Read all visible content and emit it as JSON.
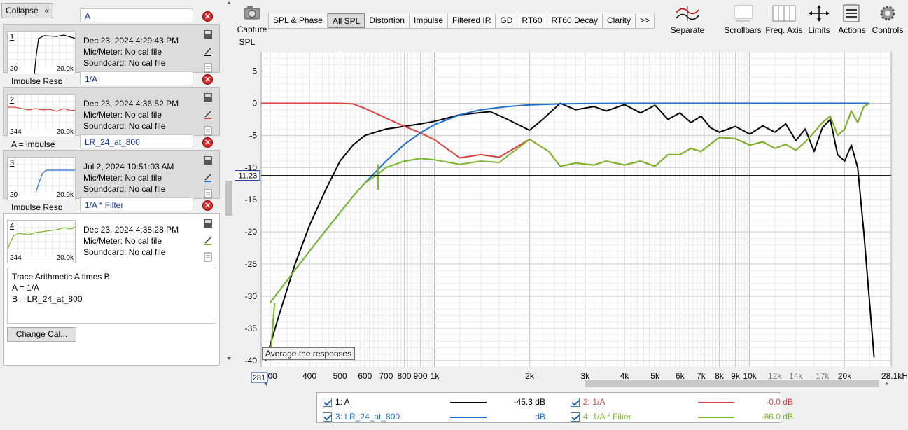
{
  "left_panel": {
    "collapse_label": "Collapse",
    "traces": [
      {
        "num": "1",
        "name": "A",
        "date": "Dec 23, 2024 4:29:43 PM",
        "mic": "Mic/Meter: No cal file",
        "soundcard": "Soundcard: No cal file",
        "thumb_lo": "20",
        "thumb_hi": "20.0k",
        "under": "Impulse Resp",
        "color": "#000000"
      },
      {
        "num": "2",
        "name": "1/A",
        "date": "Dec 23, 2024 4:36:52 PM",
        "mic": "Mic/Meter: No cal file",
        "soundcard": "Soundcard: No cal file",
        "thumb_lo": "244",
        "thumb_hi": "20.0k",
        "under": "A = impulse",
        "color": "#e04040"
      },
      {
        "num": "3",
        "name": "LR_24_at_800",
        "date": "Jul 2, 2024 10:51:03 AM",
        "mic": "Mic/Meter: No cal file",
        "soundcard": "Soundcard: No cal file",
        "thumb_lo": "20",
        "thumb_hi": "20.0k",
        "under": "Impulse Resp",
        "color": "#1e6fd0"
      },
      {
        "num": "4",
        "name": "1/A * Filter",
        "date": "Dec 23, 2024 4:38:28 PM",
        "mic": "Mic/Meter: No cal file",
        "soundcard": "Soundcard: No cal file",
        "thumb_lo": "244",
        "thumb_hi": "20.0k",
        "under": "",
        "color": "#7ab82a"
      }
    ],
    "arithmetic_lines": [
      "Trace Arithmetic A times B",
      "A = 1/A",
      "B = LR_24_at_800"
    ],
    "change_cal_label": "Change Cal..."
  },
  "toolbar": {
    "capture_label": "Capture",
    "tabs": [
      "SPL & Phase",
      "All SPL",
      "Distortion",
      "Impulse",
      "Filtered IR",
      "GD",
      "RT60",
      "RT60 Decay",
      "Clarity"
    ],
    "selected_tab": "All SPL",
    "more_label": ">>",
    "right_buttons": [
      {
        "label": "Separate",
        "icon": "separate-icon"
      },
      {
        "label": "Scrollbars",
        "icon": "scrollbars-icon"
      },
      {
        "label": "Freq. Axis",
        "icon": "freq-axis-icon"
      },
      {
        "label": "Limits",
        "icon": "limits-icon"
      },
      {
        "label": "Actions",
        "icon": "actions-icon"
      },
      {
        "label": "Controls",
        "icon": "controls-icon"
      }
    ]
  },
  "chart_data": {
    "type": "line",
    "ylabel": "SPL",
    "xunit": "Hz",
    "xscale": "log",
    "xlim": [
      281,
      28100
    ],
    "ylim": [
      -41,
      8
    ],
    "y_ticks": [
      5,
      0,
      -5,
      -10,
      -15,
      -20,
      -25,
      -30,
      -35,
      -40
    ],
    "x_tick_labels": [
      {
        "v": 281,
        "t": "281"
      },
      {
        "v": 300,
        "t": "300"
      },
      {
        "v": 400,
        "t": "400"
      },
      {
        "v": 500,
        "t": "500"
      },
      {
        "v": 600,
        "t": "600"
      },
      {
        "v": 700,
        "t": "700"
      },
      {
        "v": 800,
        "t": "800"
      },
      {
        "v": 900,
        "t": "900"
      },
      {
        "v": 1000,
        "t": "1k"
      },
      {
        "v": 2000,
        "t": "2k"
      },
      {
        "v": 3000,
        "t": "3k"
      },
      {
        "v": 4000,
        "t": "4k"
      },
      {
        "v": 5000,
        "t": "5k"
      },
      {
        "v": 6000,
        "t": "6k"
      },
      {
        "v": 7000,
        "t": "7k"
      },
      {
        "v": 8000,
        "t": "8k"
      },
      {
        "v": 9000,
        "t": "9k"
      },
      {
        "v": 10000,
        "t": "10k"
      },
      {
        "v": 12000,
        "t": "12k"
      },
      {
        "v": 14000,
        "t": "14k"
      },
      {
        "v": 17000,
        "t": "17k"
      },
      {
        "v": 20000,
        "t": "20k"
      },
      {
        "v": 28100,
        "t": "28.1kHz"
      }
    ],
    "cursor_y": -11.23,
    "cursor_y_label": "-11.23",
    "cursor_x_label": "281",
    "series": [
      {
        "name": "1: A",
        "color": "#000000",
        "x": [
          290,
          320,
          360,
          400,
          450,
          500,
          550,
          600,
          700,
          800,
          900,
          1000,
          1200,
          1500,
          1700,
          2000,
          2200,
          2500,
          2800,
          3200,
          3500,
          4000,
          4500,
          5000,
          5500,
          6000,
          6500,
          7000,
          7500,
          8000,
          9000,
          10000,
          11000,
          12000,
          13000,
          14000,
          15000,
          16000,
          17000,
          18000,
          19000,
          20000,
          21000,
          22000,
          23000,
          24000,
          24800
        ],
        "y": [
          -40,
          -33,
          -25,
          -19,
          -13.5,
          -9,
          -6.5,
          -5,
          -4,
          -3.6,
          -3.2,
          -2.8,
          -1.8,
          -1.3,
          -2.5,
          -4.2,
          -2.5,
          0,
          -1,
          -0.5,
          -1.2,
          -0.2,
          -1.5,
          -0.3,
          -2.5,
          -1.5,
          -3,
          -2,
          -3.8,
          -4.5,
          -3.6,
          -4.8,
          -3.5,
          -4.5,
          -3.2,
          -5.8,
          -4,
          -7.5,
          -3.8,
          -2.5,
          -8,
          -9,
          -6.5,
          -10,
          -20,
          -31,
          -39.5
        ]
      },
      {
        "name": "2: 1/A",
        "color": "#e04040",
        "x": [
          281,
          400,
          500,
          550,
          600,
          700,
          800,
          900,
          1000,
          1200,
          1400,
          1600,
          2000,
          2300,
          2500,
          2800,
          3200,
          3500,
          4000,
          4500,
          5000,
          5500,
          6000,
          6500,
          7000,
          8000,
          9000,
          10000,
          11000,
          12000,
          13000,
          14000,
          15000,
          16000,
          17000,
          18000,
          19000,
          20000,
          21000,
          22000,
          23000,
          24000
        ],
        "y": [
          0,
          0,
          0,
          -0.1,
          -0.8,
          -2.3,
          -3.6,
          -4.6,
          -5.7,
          -8.5,
          -8,
          -8.4,
          -5.6,
          -7.5,
          -9.8,
          -9.3,
          -9.6,
          -9,
          -9.6,
          -9,
          -9.8,
          -8,
          -8,
          -7,
          -7.5,
          -5.3,
          -5.5,
          -6.5,
          -6,
          -7,
          -6.4,
          -7.3,
          -6,
          -4.5,
          -3,
          -2,
          -5,
          -4,
          -1.2,
          -3,
          -0.5,
          0
        ]
      },
      {
        "name": "3: LR_24_at_800",
        "color": "#1e6fd0",
        "x": [
          300,
          350,
          400,
          450,
          500,
          560,
          600,
          700,
          800,
          900,
          1000,
          1200,
          1400,
          1700,
          2000,
          2500,
          3000,
          4000,
          6000,
          10000,
          24000
        ],
        "y": [
          -31,
          -26.7,
          -23,
          -19.8,
          -17,
          -14,
          -12.4,
          -9,
          -6.4,
          -4.6,
          -3.3,
          -1.8,
          -1.0,
          -0.5,
          -0.25,
          -0.1,
          -0.05,
          0,
          0,
          0,
          0
        ]
      },
      {
        "name": "4: 1/A * Filter",
        "color": "#7ab82a",
        "x": [
          300,
          350,
          400,
          450,
          500,
          560,
          600,
          660,
          700,
          800,
          900,
          1000,
          1200,
          1400,
          1600,
          2000,
          2300,
          2500,
          2800,
          3200,
          3500,
          4000,
          4500,
          5000,
          5500,
          6000,
          6500,
          7000,
          8000,
          9000,
          10000,
          11000,
          12000,
          13000,
          14000,
          15000,
          16000,
          17000,
          18000,
          19000,
          20000,
          21000,
          22000,
          23000,
          24000
        ],
        "y": [
          -31,
          -26.7,
          -23,
          -19.8,
          -17,
          -14,
          -12.4,
          -11,
          -10,
          -9,
          -8.6,
          -8.8,
          -9.5,
          -9,
          -9.2,
          -5.6,
          -7.5,
          -9.8,
          -9.3,
          -9.6,
          -9,
          -9.6,
          -9,
          -9.8,
          -8,
          -8,
          -7,
          -7.5,
          -5.3,
          -5.5,
          -6.5,
          -6,
          -7,
          -6.4,
          -7.3,
          -6,
          -4.5,
          -3,
          -2,
          -5,
          -4,
          -1.2,
          -3,
          -0.5,
          0
        ]
      }
    ]
  },
  "tooltip": "Average the responses",
  "legend": [
    {
      "label": "1: A",
      "value": "-45.3 dB",
      "color": "#000000"
    },
    {
      "label": "2: 1/A",
      "value": "-0.0 dB",
      "color": "#e04040"
    },
    {
      "label": "3: LR_24_at_800",
      "value": "dB",
      "color": "#1e6fd0"
    },
    {
      "label": "4: 1/A * Filter",
      "value": "-86.0 dB",
      "color": "#7ab82a"
    }
  ]
}
